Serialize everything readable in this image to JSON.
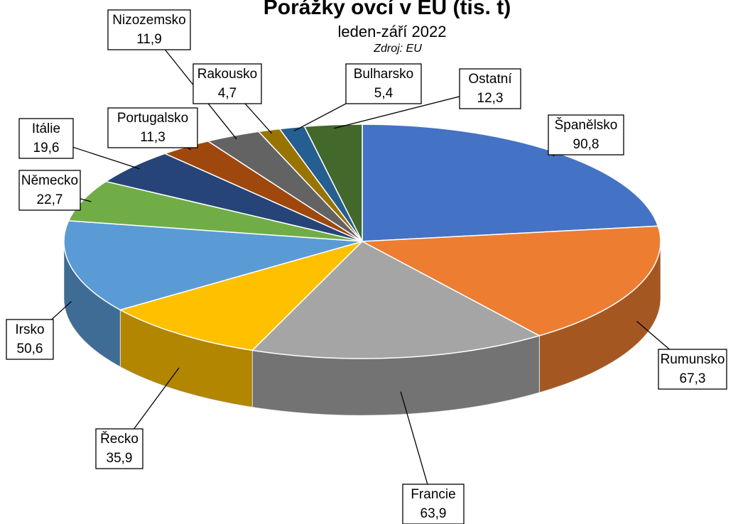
{
  "chart_data": {
    "type": "pie",
    "title": "Porážky ovcí v EU (tis. t)",
    "subtitle": "leden-září 2022",
    "source": "Zdroj: EU",
    "categories": [
      "Španělsko",
      "Rumunsko",
      "Francie",
      "Řecko",
      "Irsko",
      "Německo",
      "Itálie",
      "Portugalsko",
      "Nizozemsko",
      "Rakousko",
      "Bulharsko",
      "Ostatní"
    ],
    "values": [
      90.8,
      67.3,
      63.9,
      35.9,
      50.6,
      22.7,
      19.6,
      11.3,
      11.9,
      4.7,
      5.4,
      12.3
    ],
    "value_labels": [
      "90,8",
      "67,3",
      "63,9",
      "35,9",
      "50,6",
      "22,7",
      "19,6",
      "11,3",
      "11,9",
      "4,7",
      "5,4",
      "12,3"
    ],
    "colors": [
      "#4472c4",
      "#ed7d31",
      "#a5a5a5",
      "#ffc000",
      "#5b9bd5",
      "#70ad47",
      "#264478",
      "#9e480e",
      "#636363",
      "#997300",
      "#255e91",
      "#43682b"
    ]
  }
}
